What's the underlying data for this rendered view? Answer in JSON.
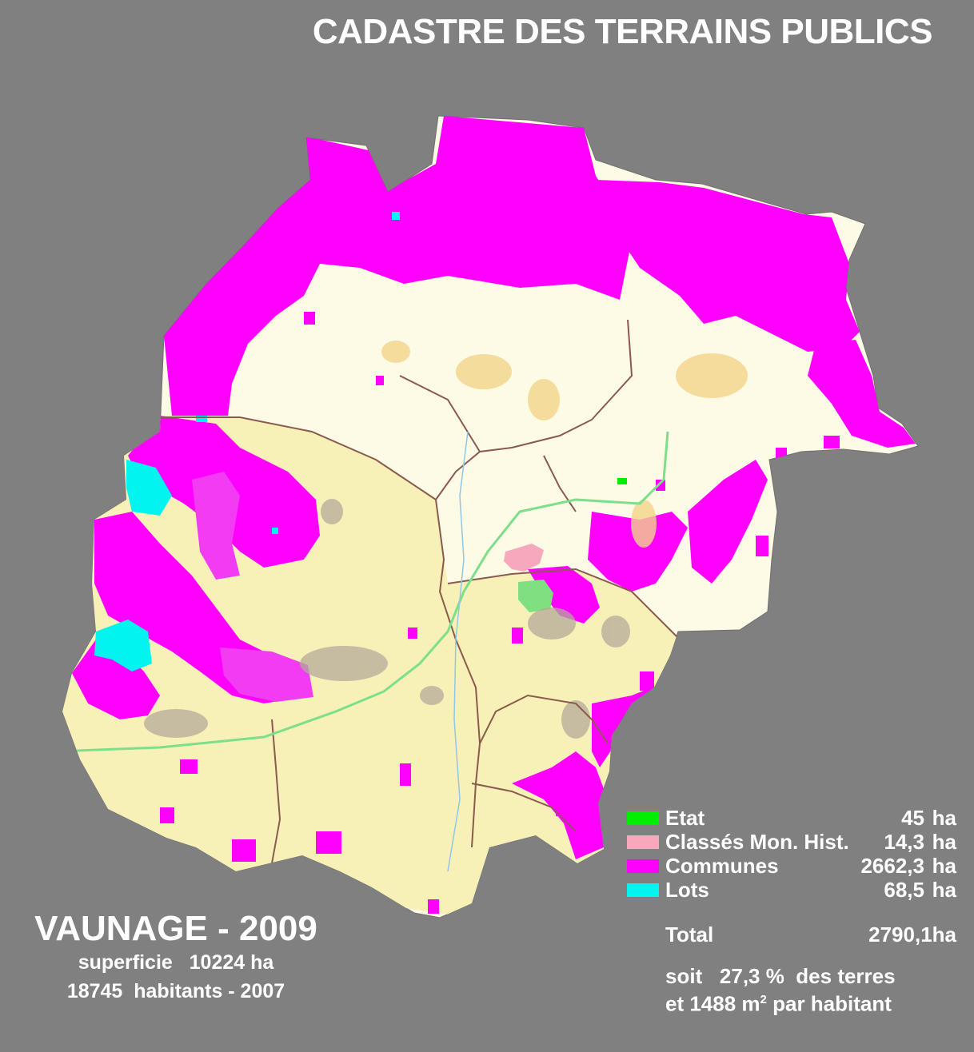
{
  "title": "CADASTRE DES TERRAINS PUBLICS",
  "colors": {
    "background": "#808080",
    "territory": "#fdfae6",
    "south_zone": "#f7f1b8",
    "border_line": "#8a5a4e",
    "communes": "#ff00ff",
    "communes_light": "#f13cf3",
    "etat": "#00ee00",
    "mon_hist": "#f7a8bd",
    "lots": "#00f5f0",
    "road": "#7ddf8a",
    "urban": "#b4a99a"
  },
  "legend": {
    "items": [
      {
        "label": "Etat",
        "value": "45",
        "unit": "ha",
        "color": "#00ee00"
      },
      {
        "label": "Classés Mon. Hist.",
        "value": "14,3",
        "unit": "ha",
        "color": "#f7a8bd"
      },
      {
        "label": "Communes",
        "value": "2662,3",
        "unit": "ha",
        "color": "#ff00ff"
      },
      {
        "label": "Lots",
        "value": "68,5",
        "unit": "ha",
        "color": "#00f5f0"
      }
    ],
    "total_label": "Total",
    "total_value": "2790,1ha",
    "summary_line1": "soit   27,3 %  des terres",
    "summary_line2_prefix": "et 1488 m",
    "summary_line2_sup": "2",
    "summary_line2_suffix": " par habitant"
  },
  "region": {
    "name": "VAUNAGE - 2009",
    "area_line": "superficie   10224 ha",
    "population_line": "18745  habitants - 2007"
  }
}
